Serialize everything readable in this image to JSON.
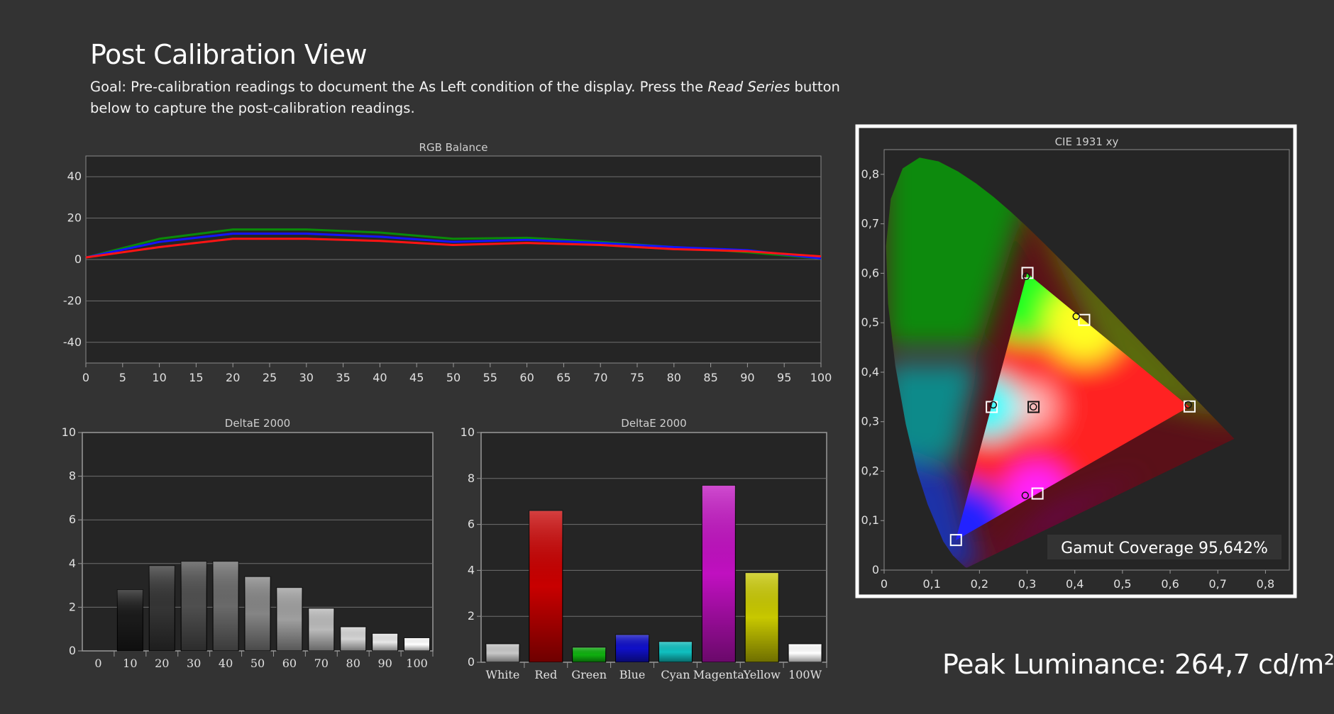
{
  "page": {
    "title": "Post Calibration View",
    "goal_prefix": "Goal: Pre-calibration readings to document the As Left condition of the display. Press the ",
    "goal_emphasis": "Read Series",
    "goal_suffix": " button below to capture the post-calibration readings.",
    "peak_luminance": "Peak Luminance: 264,7 cd/m²"
  },
  "colors": {
    "background": "#333333",
    "plot_background": "#252525",
    "red": "#ff1414",
    "green": "#0a8a0a",
    "blue": "#1414ff"
  },
  "chart_data": [
    {
      "id": "rgb-balance",
      "type": "line",
      "title": "RGB Balance",
      "xlabel": "",
      "ylabel": "",
      "xlim": [
        0,
        100
      ],
      "ylim": [
        -50,
        50
      ],
      "xticks": [
        "0",
        "5",
        "10",
        "15",
        "20",
        "25",
        "30",
        "35",
        "40",
        "45",
        "50",
        "55",
        "60",
        "65",
        "70",
        "75",
        "80",
        "85",
        "90",
        "95",
        "100"
      ],
      "yticks": [
        "40",
        "20",
        "0",
        "-20",
        "-40"
      ],
      "grid": true,
      "x": [
        0,
        10,
        20,
        30,
        40,
        50,
        60,
        70,
        80,
        90,
        100
      ],
      "series": [
        {
          "color": "#0a8a0a",
          "values": [
            1,
            10,
            14.5,
            14.5,
            13,
            10,
            10.5,
            8.5,
            6,
            3.5,
            0.5
          ]
        },
        {
          "color": "#1414ff",
          "values": [
            1,
            8.5,
            12.5,
            12.5,
            11,
            8.5,
            9.5,
            8,
            6,
            4.5,
            0.5
          ]
        },
        {
          "color": "#ff1414",
          "values": [
            1,
            6,
            10,
            10,
            9,
            7,
            8,
            7,
            5,
            4,
            1.5
          ]
        }
      ]
    },
    {
      "id": "deltae-grayscale",
      "type": "bar",
      "title": "DeltaE 2000",
      "ylim": [
        0,
        10
      ],
      "yticks": [
        "10",
        "8",
        "6",
        "4",
        "2",
        "0"
      ],
      "categories": [
        "0",
        "10",
        "20",
        "30",
        "40",
        "50",
        "60",
        "70",
        "80",
        "90",
        "100"
      ],
      "values": [
        0,
        2.8,
        3.9,
        4.1,
        4.1,
        3.4,
        2.9,
        1.95,
        1.1,
        0.8,
        0.6
      ],
      "bar_colors": [
        "#000000",
        "#1a1a1a",
        "#353535",
        "#4f4f4f",
        "#6a6a6a",
        "#858585",
        "#9f9f9f",
        "#bababa",
        "#d4d4d4",
        "#e8e8e8",
        "#ffffff"
      ]
    },
    {
      "id": "deltae-colors",
      "type": "bar",
      "title": "DeltaE 2000",
      "ylim": [
        0,
        10
      ],
      "yticks": [
        "10",
        "8",
        "6",
        "4",
        "2",
        "0"
      ],
      "categories": [
        "White",
        "Red",
        "Green",
        "Blue",
        "Cyan",
        "Magenta",
        "Yellow",
        "100W"
      ],
      "values": [
        0.8,
        6.6,
        0.65,
        1.2,
        0.9,
        7.7,
        3.9,
        0.8
      ],
      "bar_colors": [
        "#c8c8c8",
        "#c80000",
        "#10b010",
        "#1010c8",
        "#10c0c0",
        "#c010c0",
        "#c8c800",
        "#ffffff"
      ]
    },
    {
      "id": "cie-1931",
      "type": "scatter",
      "title": "CIE 1931 xy",
      "xlim": [
        0,
        0.85
      ],
      "ylim": [
        0,
        0.85
      ],
      "xticks": [
        "0",
        "0,1",
        "0,2",
        "0,3",
        "0,4",
        "0,5",
        "0,6",
        "0,7",
        "0,8"
      ],
      "yticks": [
        "0,8",
        "0,7",
        "0,6",
        "0,5",
        "0,4",
        "0,3",
        "0,2",
        "0,1",
        "0"
      ],
      "targets": [
        {
          "x": 0.64,
          "y": 0.33
        },
        {
          "x": 0.3,
          "y": 0.6
        },
        {
          "x": 0.15,
          "y": 0.06
        },
        {
          "x": 0.225,
          "y": 0.329
        },
        {
          "x": 0.321,
          "y": 0.154
        },
        {
          "x": 0.419,
          "y": 0.505
        },
        {
          "x": 0.3127,
          "y": 0.329
        }
      ],
      "measured": [
        {
          "x": 0.638,
          "y": 0.334
        },
        {
          "x": 0.298,
          "y": 0.594
        },
        {
          "x": 0.229,
          "y": 0.334
        },
        {
          "x": 0.296,
          "y": 0.151
        },
        {
          "x": 0.403,
          "y": 0.513
        },
        {
          "x": 0.313,
          "y": 0.33
        }
      ],
      "gamut_coverage": "Gamut Coverage 95,642%"
    }
  ]
}
